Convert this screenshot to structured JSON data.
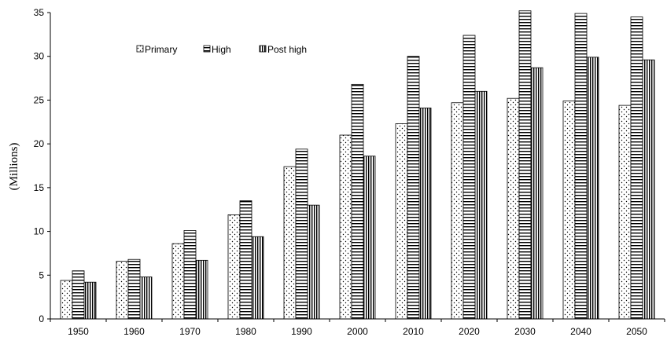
{
  "chart_data": {
    "type": "bar",
    "title": "",
    "xlabel": "",
    "ylabel": "(Millions)",
    "ylim": [
      0,
      35
    ],
    "yticks": [
      0,
      5,
      10,
      15,
      20,
      25,
      30,
      35
    ],
    "grid": false,
    "legend_position": "top-left",
    "categories": [
      "1950",
      "1960",
      "1970",
      "1980",
      "1990",
      "2000",
      "2010",
      "2020",
      "2030",
      "2040",
      "2050"
    ],
    "series": [
      {
        "name": "Primary",
        "pattern": "dots",
        "color": "#000000",
        "values": [
          4.4,
          6.6,
          8.6,
          11.9,
          17.4,
          21.0,
          22.3,
          24.7,
          25.2,
          24.9,
          24.4
        ]
      },
      {
        "name": "High",
        "pattern": "horizontal-stripes",
        "color": "#000000",
        "values": [
          5.5,
          6.8,
          10.1,
          13.5,
          19.4,
          26.8,
          30.0,
          32.4,
          35.2,
          34.9,
          34.5
        ]
      },
      {
        "name": "Post high",
        "pattern": "vertical-stripes",
        "color": "#000000",
        "values": [
          4.2,
          4.8,
          6.7,
          9.4,
          13.0,
          18.6,
          24.1,
          26.0,
          28.7,
          29.9,
          29.6
        ]
      }
    ]
  }
}
